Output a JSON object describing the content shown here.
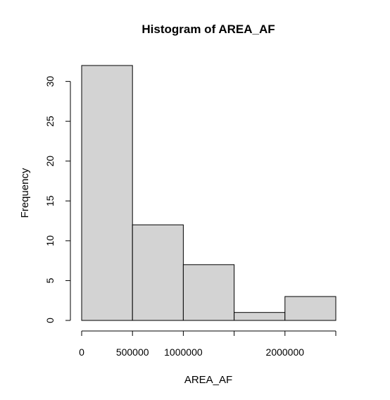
{
  "chart_data": {
    "type": "bar",
    "title": "Histogram of AREA_AF",
    "xlabel": "AREA_AF",
    "ylabel": "Frequency",
    "bins": [
      {
        "start": 0,
        "end": 500000,
        "count": 32
      },
      {
        "start": 500000,
        "end": 1000000,
        "count": 12
      },
      {
        "start": 1000000,
        "end": 1500000,
        "count": 7
      },
      {
        "start": 1500000,
        "end": 2000000,
        "count": 1
      },
      {
        "start": 2000000,
        "end": 2500000,
        "count": 3
      }
    ],
    "xlim": [
      0,
      2500000
    ],
    "ylim": [
      0,
      32
    ],
    "x_ticks": [
      0,
      500000,
      1000000,
      1500000,
      2000000,
      2500000
    ],
    "x_tick_labels": [
      "0",
      "500000",
      "1000000",
      "",
      "2000000",
      ""
    ],
    "y_ticks": [
      0,
      5,
      10,
      15,
      20,
      25,
      30
    ],
    "y_tick_labels": [
      "0",
      "5",
      "10",
      "15",
      "20",
      "25",
      "30"
    ],
    "bar_fill": "#d3d3d3",
    "bar_stroke": "#000000",
    "grid": false,
    "legend": "none"
  }
}
